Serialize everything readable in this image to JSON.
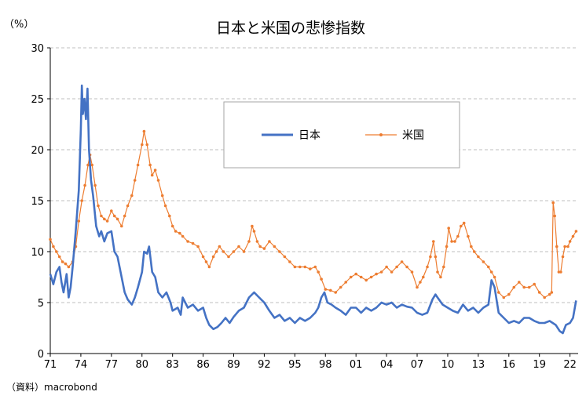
{
  "chart_data": {
    "type": "line",
    "title": "日本と米国の悲惨指数",
    "y_unit": "（%）",
    "source": "（資料）macrobond",
    "ylim": [
      0,
      30
    ],
    "y_ticks": [
      0,
      5,
      10,
      15,
      20,
      25,
      30
    ],
    "xlim": [
      1971.0,
      2022.8
    ],
    "x_tick_labels": [
      "71",
      "74",
      "77",
      "80",
      "83",
      "86",
      "89",
      "92",
      "95",
      "98",
      "01",
      "04",
      "07",
      "10",
      "13",
      "16",
      "19",
      "22"
    ],
    "x_tick_years": [
      1971,
      1974,
      1977,
      1980,
      1983,
      1986,
      1989,
      1992,
      1995,
      1998,
      2001,
      2004,
      2007,
      2010,
      2013,
      2016,
      2019,
      2022
    ],
    "grid": "horizontal-dashed",
    "legend_position": "top-center",
    "series": [
      {
        "name": "日本",
        "color": "#4472C4",
        "marker": "none",
        "points": [
          [
            1971.0,
            7.8
          ],
          [
            1971.3,
            6.8
          ],
          [
            1971.6,
            8.0
          ],
          [
            1971.9,
            8.5
          ],
          [
            1972.1,
            7.0
          ],
          [
            1972.3,
            6.0
          ],
          [
            1972.6,
            7.8
          ],
          [
            1972.8,
            5.5
          ],
          [
            1973.0,
            6.5
          ],
          [
            1973.2,
            8.5
          ],
          [
            1973.5,
            12.0
          ],
          [
            1973.8,
            16.0
          ],
          [
            1974.0,
            22.0
          ],
          [
            1974.1,
            26.3
          ],
          [
            1974.2,
            23.5
          ],
          [
            1974.35,
            25.0
          ],
          [
            1974.5,
            23.0
          ],
          [
            1974.65,
            26.0
          ],
          [
            1974.8,
            20.0
          ],
          [
            1975.0,
            17.0
          ],
          [
            1975.2,
            15.5
          ],
          [
            1975.5,
            12.5
          ],
          [
            1975.8,
            11.5
          ],
          [
            1976.0,
            12.0
          ],
          [
            1976.3,
            11.0
          ],
          [
            1976.6,
            11.8
          ],
          [
            1977.0,
            12.0
          ],
          [
            1977.3,
            10.0
          ],
          [
            1977.6,
            9.5
          ],
          [
            1978.0,
            7.5
          ],
          [
            1978.3,
            6.0
          ],
          [
            1978.6,
            5.3
          ],
          [
            1979.0,
            4.8
          ],
          [
            1979.3,
            5.5
          ],
          [
            1979.6,
            6.5
          ],
          [
            1980.0,
            8.0
          ],
          [
            1980.2,
            10.0
          ],
          [
            1980.5,
            9.8
          ],
          [
            1980.7,
            10.5
          ],
          [
            1981.0,
            8.0
          ],
          [
            1981.3,
            7.5
          ],
          [
            1981.6,
            6.0
          ],
          [
            1982.0,
            5.5
          ],
          [
            1982.4,
            6.0
          ],
          [
            1982.8,
            5.0
          ],
          [
            1983.0,
            4.2
          ],
          [
            1983.5,
            4.5
          ],
          [
            1983.8,
            3.8
          ],
          [
            1984.0,
            5.5
          ],
          [
            1984.5,
            4.5
          ],
          [
            1985.0,
            4.8
          ],
          [
            1985.5,
            4.2
          ],
          [
            1986.0,
            4.5
          ],
          [
            1986.3,
            3.5
          ],
          [
            1986.6,
            2.8
          ],
          [
            1987.0,
            2.4
          ],
          [
            1987.4,
            2.6
          ],
          [
            1987.8,
            3.0
          ],
          [
            1988.2,
            3.5
          ],
          [
            1988.6,
            3.0
          ],
          [
            1989.0,
            3.6
          ],
          [
            1989.5,
            4.2
          ],
          [
            1990.0,
            4.5
          ],
          [
            1990.5,
            5.5
          ],
          [
            1991.0,
            6.0
          ],
          [
            1991.5,
            5.5
          ],
          [
            1992.0,
            5.0
          ],
          [
            1992.5,
            4.2
          ],
          [
            1993.0,
            3.5
          ],
          [
            1993.5,
            3.8
          ],
          [
            1994.0,
            3.2
          ],
          [
            1994.5,
            3.5
          ],
          [
            1995.0,
            3.0
          ],
          [
            1995.5,
            3.5
          ],
          [
            1996.0,
            3.2
          ],
          [
            1996.5,
            3.5
          ],
          [
            1997.0,
            4.0
          ],
          [
            1997.3,
            4.5
          ],
          [
            1997.6,
            5.5
          ],
          [
            1997.9,
            6.0
          ],
          [
            1998.2,
            5.0
          ],
          [
            1998.6,
            4.8
          ],
          [
            1999.0,
            4.5
          ],
          [
            1999.5,
            4.2
          ],
          [
            2000.0,
            3.8
          ],
          [
            2000.5,
            4.5
          ],
          [
            2001.0,
            4.5
          ],
          [
            2001.5,
            4.0
          ],
          [
            2002.0,
            4.5
          ],
          [
            2002.5,
            4.2
          ],
          [
            2003.0,
            4.5
          ],
          [
            2003.5,
            5.0
          ],
          [
            2004.0,
            4.8
          ],
          [
            2004.5,
            5.0
          ],
          [
            2005.0,
            4.5
          ],
          [
            2005.5,
            4.8
          ],
          [
            2006.0,
            4.6
          ],
          [
            2006.5,
            4.5
          ],
          [
            2007.0,
            4.0
          ],
          [
            2007.5,
            3.8
          ],
          [
            2008.0,
            4.0
          ],
          [
            2008.5,
            5.3
          ],
          [
            2008.8,
            5.8
          ],
          [
            2009.0,
            5.5
          ],
          [
            2009.5,
            4.8
          ],
          [
            2010.0,
            4.5
          ],
          [
            2010.5,
            4.2
          ],
          [
            2011.0,
            4.0
          ],
          [
            2011.5,
            4.8
          ],
          [
            2012.0,
            4.2
          ],
          [
            2012.5,
            4.5
          ],
          [
            2013.0,
            4.0
          ],
          [
            2013.5,
            4.5
          ],
          [
            2014.0,
            4.8
          ],
          [
            2014.3,
            7.2
          ],
          [
            2014.6,
            6.5
          ],
          [
            2015.0,
            4.0
          ],
          [
            2015.5,
            3.5
          ],
          [
            2016.0,
            3.0
          ],
          [
            2016.5,
            3.2
          ],
          [
            2017.0,
            3.0
          ],
          [
            2017.5,
            3.5
          ],
          [
            2018.0,
            3.5
          ],
          [
            2018.5,
            3.2
          ],
          [
            2019.0,
            3.0
          ],
          [
            2019.5,
            3.0
          ],
          [
            2020.0,
            3.2
          ],
          [
            2020.3,
            3.0
          ],
          [
            2020.6,
            2.8
          ],
          [
            2021.0,
            2.2
          ],
          [
            2021.3,
            2.0
          ],
          [
            2021.6,
            2.8
          ],
          [
            2022.0,
            3.0
          ],
          [
            2022.3,
            3.5
          ],
          [
            2022.6,
            5.2
          ]
        ]
      },
      {
        "name": "米国",
        "color": "#ED7D31",
        "marker": "dot",
        "points": [
          [
            1971.0,
            11.2
          ],
          [
            1971.3,
            10.5
          ],
          [
            1971.6,
            10.0
          ],
          [
            1971.9,
            9.5
          ],
          [
            1972.2,
            9.0
          ],
          [
            1972.5,
            8.8
          ],
          [
            1972.8,
            8.5
          ],
          [
            1973.2,
            9.0
          ],
          [
            1973.5,
            10.5
          ],
          [
            1973.8,
            13.0
          ],
          [
            1974.1,
            15.0
          ],
          [
            1974.4,
            16.5
          ],
          [
            1974.7,
            18.5
          ],
          [
            1974.9,
            19.5
          ],
          [
            1975.1,
            18.5
          ],
          [
            1975.4,
            16.5
          ],
          [
            1975.7,
            14.5
          ],
          [
            1976.0,
            13.5
          ],
          [
            1976.3,
            13.2
          ],
          [
            1976.6,
            13.0
          ],
          [
            1977.0,
            14.0
          ],
          [
            1977.3,
            13.5
          ],
          [
            1977.6,
            13.2
          ],
          [
            1978.0,
            12.5
          ],
          [
            1978.3,
            13.5
          ],
          [
            1978.6,
            14.5
          ],
          [
            1979.0,
            15.5
          ],
          [
            1979.3,
            17.0
          ],
          [
            1979.6,
            18.5
          ],
          [
            1980.0,
            20.5
          ],
          [
            1980.2,
            21.8
          ],
          [
            1980.5,
            20.5
          ],
          [
            1980.8,
            18.5
          ],
          [
            1981.0,
            17.5
          ],
          [
            1981.3,
            18.0
          ],
          [
            1981.6,
            17.0
          ],
          [
            1982.0,
            15.5
          ],
          [
            1982.3,
            14.5
          ],
          [
            1982.7,
            13.5
          ],
          [
            1983.0,
            12.5
          ],
          [
            1983.3,
            12.0
          ],
          [
            1983.7,
            11.8
          ],
          [
            1984.0,
            11.5
          ],
          [
            1984.5,
            11.0
          ],
          [
            1985.0,
            10.8
          ],
          [
            1985.5,
            10.5
          ],
          [
            1986.0,
            9.5
          ],
          [
            1986.3,
            9.0
          ],
          [
            1986.6,
            8.5
          ],
          [
            1987.0,
            9.5
          ],
          [
            1987.3,
            10.0
          ],
          [
            1987.6,
            10.5
          ],
          [
            1988.0,
            10.0
          ],
          [
            1988.5,
            9.5
          ],
          [
            1989.0,
            10.0
          ],
          [
            1989.5,
            10.5
          ],
          [
            1990.0,
            10.0
          ],
          [
            1990.5,
            11.0
          ],
          [
            1990.8,
            12.5
          ],
          [
            1991.0,
            12.0
          ],
          [
            1991.3,
            11.0
          ],
          [
            1991.6,
            10.5
          ],
          [
            1992.0,
            10.3
          ],
          [
            1992.5,
            11.0
          ],
          [
            1993.0,
            10.5
          ],
          [
            1993.5,
            10.0
          ],
          [
            1994.0,
            9.5
          ],
          [
            1994.5,
            9.0
          ],
          [
            1995.0,
            8.5
          ],
          [
            1995.5,
            8.5
          ],
          [
            1996.0,
            8.5
          ],
          [
            1996.5,
            8.3
          ],
          [
            1997.0,
            8.5
          ],
          [
            1997.3,
            8.0
          ],
          [
            1997.6,
            7.3
          ],
          [
            1998.0,
            6.3
          ],
          [
            1998.5,
            6.2
          ],
          [
            1999.0,
            6.0
          ],
          [
            1999.5,
            6.5
          ],
          [
            2000.0,
            7.0
          ],
          [
            2000.5,
            7.5
          ],
          [
            2001.0,
            7.8
          ],
          [
            2001.5,
            7.5
          ],
          [
            2002.0,
            7.2
          ],
          [
            2002.5,
            7.5
          ],
          [
            2003.0,
            7.8
          ],
          [
            2003.5,
            8.0
          ],
          [
            2004.0,
            8.5
          ],
          [
            2004.5,
            8.0
          ],
          [
            2005.0,
            8.5
          ],
          [
            2005.5,
            9.0
          ],
          [
            2006.0,
            8.5
          ],
          [
            2006.5,
            8.0
          ],
          [
            2007.0,
            6.5
          ],
          [
            2007.3,
            7.0
          ],
          [
            2007.6,
            7.5
          ],
          [
            2008.0,
            8.5
          ],
          [
            2008.3,
            9.5
          ],
          [
            2008.6,
            11.0
          ],
          [
            2008.8,
            9.5
          ],
          [
            2009.0,
            8.0
          ],
          [
            2009.3,
            7.5
          ],
          [
            2009.6,
            8.5
          ],
          [
            2009.9,
            10.5
          ],
          [
            2010.1,
            12.3
          ],
          [
            2010.4,
            11.0
          ],
          [
            2010.7,
            11.0
          ],
          [
            2011.0,
            11.5
          ],
          [
            2011.3,
            12.5
          ],
          [
            2011.6,
            12.8
          ],
          [
            2012.0,
            11.5
          ],
          [
            2012.3,
            10.5
          ],
          [
            2012.6,
            10.0
          ],
          [
            2013.0,
            9.5
          ],
          [
            2013.5,
            9.0
          ],
          [
            2014.0,
            8.5
          ],
          [
            2014.3,
            8.0
          ],
          [
            2014.6,
            7.5
          ],
          [
            2015.0,
            6.0
          ],
          [
            2015.5,
            5.5
          ],
          [
            2016.0,
            5.8
          ],
          [
            2016.5,
            6.5
          ],
          [
            2017.0,
            7.0
          ],
          [
            2017.5,
            6.5
          ],
          [
            2018.0,
            6.5
          ],
          [
            2018.5,
            6.8
          ],
          [
            2019.0,
            6.0
          ],
          [
            2019.5,
            5.5
          ],
          [
            2020.0,
            5.8
          ],
          [
            2020.2,
            6.0
          ],
          [
            2020.35,
            14.8
          ],
          [
            2020.5,
            13.5
          ],
          [
            2020.7,
            10.5
          ],
          [
            2020.9,
            8.0
          ],
          [
            2021.1,
            8.0
          ],
          [
            2021.3,
            9.5
          ],
          [
            2021.5,
            10.5
          ],
          [
            2021.8,
            10.5
          ],
          [
            2022.0,
            11.0
          ],
          [
            2022.3,
            11.5
          ],
          [
            2022.6,
            12.0
          ]
        ]
      }
    ]
  }
}
